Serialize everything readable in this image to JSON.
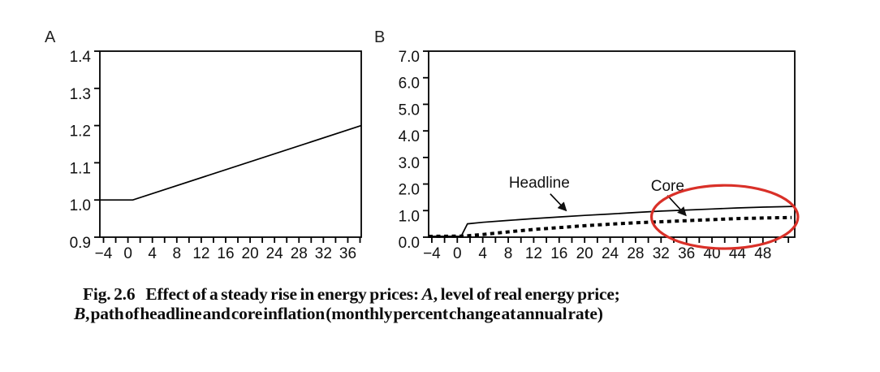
{
  "panels": {
    "a_label": "A",
    "b_label": "B"
  },
  "caption": {
    "fig_number": "Fig. 2.6",
    "line1_main": "Effect of a steady rise in energy prices: ",
    "line1_var": "A",
    "line1_tail": ", level of real energy price;",
    "line2_var": "B",
    "line2_tail": ", path of headline and core inflation (monthly percent change at annual rate)"
  },
  "colors": {
    "ink": "#000000",
    "highlight": "#d93028"
  },
  "chart_data": [
    {
      "type": "line",
      "panel": "A",
      "title": "",
      "xlabel": "",
      "ylabel": "",
      "grid": false,
      "xlim": [
        -4.6,
        38.2
      ],
      "ylim": [
        0.9,
        1.4
      ],
      "y_ticks": [
        0.9,
        1.0,
        1.1,
        1.2,
        1.3,
        1.4
      ],
      "x_tick_labels": [
        -4,
        0,
        4,
        8,
        12,
        16,
        20,
        24,
        28,
        32,
        36
      ],
      "x_minor": {
        "start": -4,
        "end": 38,
        "step": 2
      },
      "series": [
        {
          "name": "Real energy price",
          "style": "solid",
          "points": [
            [
              -4.6,
              1.0
            ],
            [
              0.8,
              1.0
            ],
            [
              38.2,
              1.2
            ]
          ]
        }
      ]
    },
    {
      "type": "line",
      "panel": "B",
      "title": "",
      "xlabel": "",
      "ylabel": "",
      "grid": false,
      "xlim": [
        -4.5,
        53
      ],
      "ylim": [
        0,
        7
      ],
      "y_ticks": [
        0,
        1,
        2,
        3,
        4,
        5,
        6,
        7
      ],
      "x_tick_labels": [
        -4,
        0,
        4,
        8,
        12,
        16,
        20,
        24,
        28,
        32,
        36,
        40,
        44,
        48
      ],
      "x_minor": {
        "start": -4,
        "end": 52,
        "step": 2
      },
      "series": [
        {
          "name": "Headline",
          "style": "solid",
          "points": [
            [
              -4.5,
              0.03
            ],
            [
              0.6,
              0.03
            ],
            [
              1.6,
              0.5
            ],
            [
              4,
              0.56
            ],
            [
              8,
              0.63
            ],
            [
              12,
              0.7
            ],
            [
              16,
              0.76
            ],
            [
              20,
              0.82
            ],
            [
              24,
              0.87
            ],
            [
              28,
              0.93
            ],
            [
              32,
              0.98
            ],
            [
              36,
              1.02
            ],
            [
              40,
              1.06
            ],
            [
              44,
              1.1
            ],
            [
              48,
              1.13
            ],
            [
              53,
              1.16
            ]
          ]
        },
        {
          "name": "Core",
          "style": "dotted",
          "points": [
            [
              -4.5,
              0.03
            ],
            [
              1,
              0.04
            ],
            [
              4,
              0.1
            ],
            [
              8,
              0.2
            ],
            [
              12,
              0.29
            ],
            [
              16,
              0.36
            ],
            [
              20,
              0.43
            ],
            [
              24,
              0.49
            ],
            [
              28,
              0.54
            ],
            [
              32,
              0.58
            ],
            [
              36,
              0.62
            ],
            [
              40,
              0.66
            ],
            [
              44,
              0.7
            ],
            [
              48,
              0.72
            ],
            [
              52.5,
              0.74
            ]
          ]
        }
      ],
      "annotations": {
        "labels": [
          {
            "text": "Headline",
            "x": 8.1,
            "y": 1.87,
            "arrow_from": [
              14.6,
              1.63
            ],
            "arrow_to": [
              17.1,
              1.0
            ]
          },
          {
            "text": "Core",
            "x": 30.4,
            "y": 1.74,
            "arrow_from": [
              33.0,
              1.57
            ],
            "arrow_to": [
              35.9,
              0.82
            ]
          }
        ],
        "ellipse": {
          "cx": 42.0,
          "cy": 0.76,
          "rx": 11.5,
          "ry": 1.19,
          "color": "#d93028"
        }
      }
    }
  ]
}
